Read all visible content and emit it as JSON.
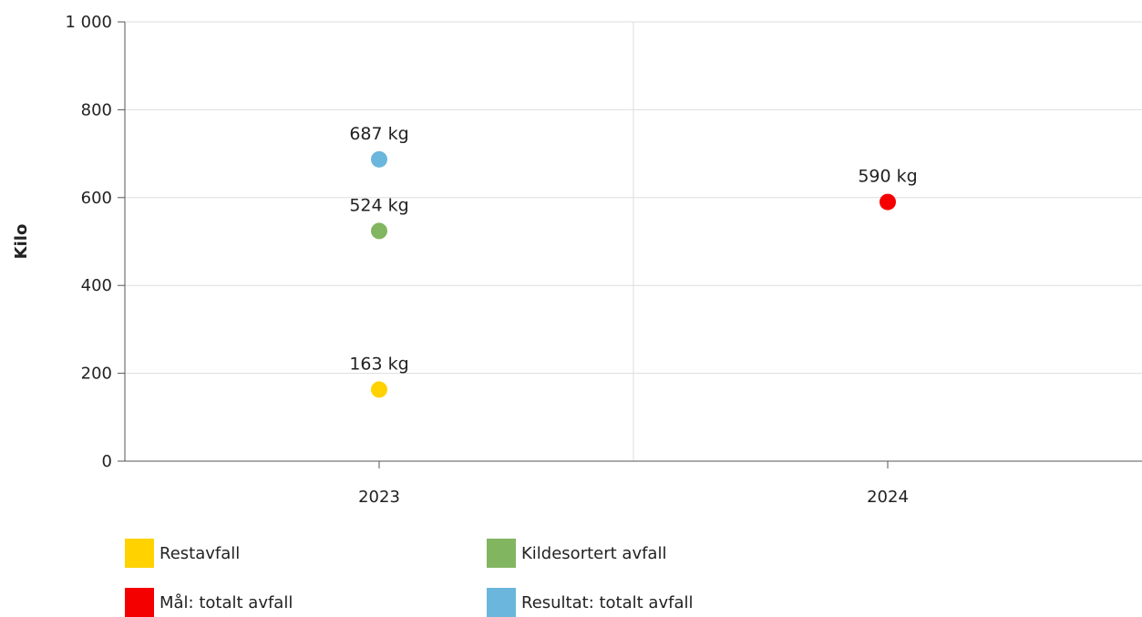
{
  "chart_data": {
    "type": "scatter",
    "ylabel": "Kilo",
    "ylim": [
      0,
      1000
    ],
    "y_ticks": [
      "0",
      "200",
      "400",
      "600",
      "800",
      "1 000"
    ],
    "y_tick_values": [
      0,
      200,
      400,
      600,
      800,
      1000
    ],
    "categories": [
      "2023",
      "2024"
    ],
    "grid": true,
    "legend_position": "bottom",
    "series": [
      {
        "name": "Restavfall",
        "color": "#FFD200",
        "points": [
          {
            "x": "2023",
            "y": 163,
            "label": "163 kg"
          }
        ]
      },
      {
        "name": "Kildesortert avfall",
        "color": "#82B560",
        "points": [
          {
            "x": "2023",
            "y": 524,
            "label": "524 kg"
          }
        ]
      },
      {
        "name": "Mål: totalt avfall",
        "color": "#F50000",
        "points": [
          {
            "x": "2024",
            "y": 590,
            "label": "590 kg"
          }
        ]
      },
      {
        "name": "Resultat: totalt avfall",
        "color": "#6BB6DC",
        "points": [
          {
            "x": "2023",
            "y": 687,
            "label": "687 kg"
          }
        ]
      }
    ]
  }
}
